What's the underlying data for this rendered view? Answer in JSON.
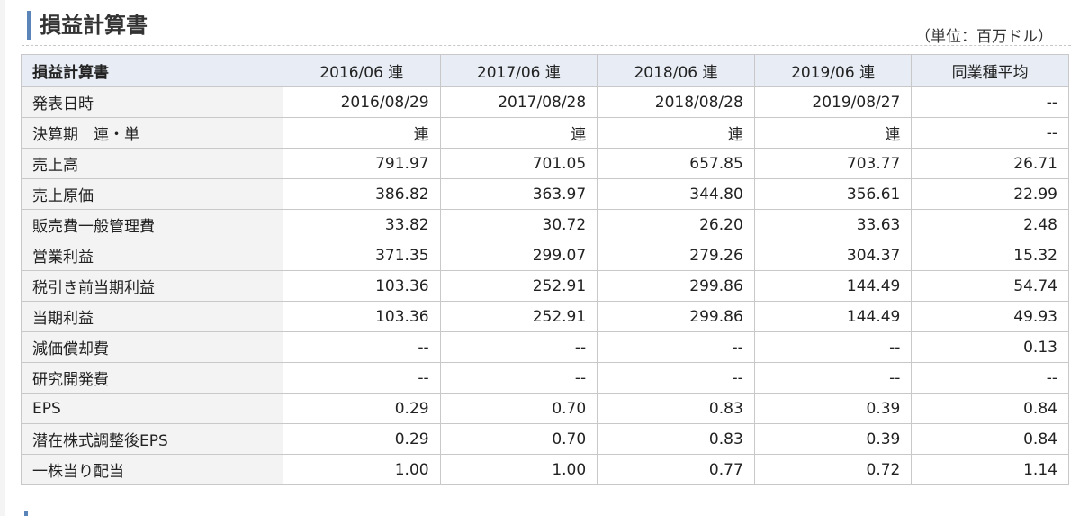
{
  "header": {
    "title": "損益計算書",
    "unit": "（単位：百万ドル）"
  },
  "table": {
    "corner_label": "損益計算書",
    "columns": [
      "2016/06 連",
      "2017/06 連",
      "2018/06 連",
      "2019/06 連",
      "同業種平均"
    ],
    "rows": [
      {
        "label": "発表日時",
        "values": [
          "2016/08/29",
          "2017/08/28",
          "2018/08/28",
          "2019/08/27",
          "--"
        ]
      },
      {
        "label": "決算期　連・単",
        "values": [
          "連",
          "連",
          "連",
          "連",
          "--"
        ]
      },
      {
        "label": "売上高",
        "values": [
          "791.97",
          "701.05",
          "657.85",
          "703.77",
          "26.71"
        ]
      },
      {
        "label": "売上原価",
        "values": [
          "386.82",
          "363.97",
          "344.80",
          "356.61",
          "22.99"
        ]
      },
      {
        "label": "販売費一般管理費",
        "values": [
          "33.82",
          "30.72",
          "26.20",
          "33.63",
          "2.48"
        ]
      },
      {
        "label": "営業利益",
        "values": [
          "371.35",
          "299.07",
          "279.26",
          "304.37",
          "15.32"
        ]
      },
      {
        "label": "税引き前当期利益",
        "values": [
          "103.36",
          "252.91",
          "299.86",
          "144.49",
          "54.74"
        ]
      },
      {
        "label": "当期利益",
        "values": [
          "103.36",
          "252.91",
          "299.86",
          "144.49",
          "49.93"
        ]
      },
      {
        "label": "減価償却費",
        "values": [
          "--",
          "--",
          "--",
          "--",
          "0.13"
        ]
      },
      {
        "label": "研究開発費",
        "values": [
          "--",
          "--",
          "--",
          "--",
          "--"
        ]
      },
      {
        "label": "EPS",
        "values": [
          "0.29",
          "0.70",
          "0.83",
          "0.39",
          "0.84"
        ]
      },
      {
        "label": "潜在株式調整後EPS",
        "values": [
          "0.29",
          "0.70",
          "0.83",
          "0.39",
          "0.84"
        ]
      },
      {
        "label": "一株当り配当",
        "values": [
          "1.00",
          "1.00",
          "0.77",
          "0.72",
          "1.14"
        ]
      }
    ]
  },
  "colors": {
    "accent": "#5b85b8",
    "header_bg": "#e8edf5",
    "label_bg": "#f3f3f3",
    "border": "#c8c8c8"
  }
}
